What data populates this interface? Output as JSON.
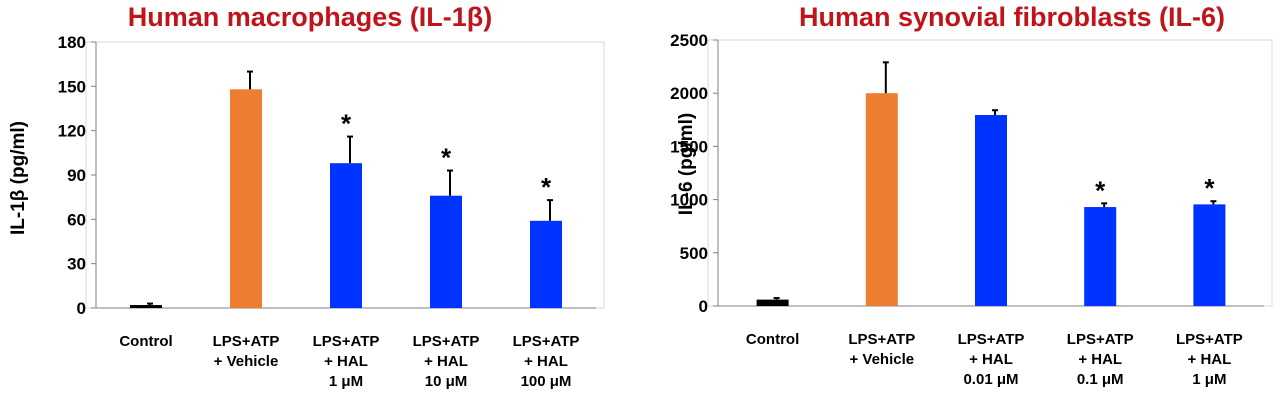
{
  "chart_data": [
    {
      "type": "bar",
      "title": "Human macrophages (IL-1β)",
      "ylabel": "IL-1β (pg/ml)",
      "xlabel": "",
      "ylim": [
        0,
        180
      ],
      "yticks": [
        0,
        30,
        60,
        90,
        120,
        150,
        180
      ],
      "categories": [
        [
          "Control"
        ],
        [
          "LPS+ATP",
          "+ Vehicle"
        ],
        [
          "LPS+ATP",
          "+ HAL",
          "1 μM"
        ],
        [
          "LPS+ATP",
          "+ HAL",
          "10 μM"
        ],
        [
          "LPS+ATP",
          "+ HAL",
          "100 μM"
        ]
      ],
      "values": [
        2,
        148,
        98,
        76,
        59
      ],
      "errors": [
        1,
        12,
        18,
        17,
        14
      ],
      "significance": [
        "",
        "",
        "*",
        "*",
        "*"
      ],
      "colors": [
        "#000000",
        "#ed7d31",
        "#0033ff",
        "#0033ff",
        "#0033ff"
      ],
      "grid": false,
      "legend": "none"
    },
    {
      "type": "bar",
      "title": "Human synovial fibroblasts (IL-6)",
      "ylabel": "IL-6 (pg/ml)",
      "xlabel": "",
      "ylim": [
        0,
        2500
      ],
      "yticks": [
        0,
        500,
        1000,
        1500,
        2000,
        2500
      ],
      "categories": [
        [
          "Control"
        ],
        [
          "LPS+ATP",
          "+ Vehicle"
        ],
        [
          "LPS+ATP",
          "+ HAL",
          "0.01 μM"
        ],
        [
          "LPS+ATP",
          "+ HAL",
          "0.1 μM"
        ],
        [
          "LPS+ATP",
          "+ HAL",
          "1 μM"
        ]
      ],
      "values": [
        60,
        2000,
        1795,
        930,
        955
      ],
      "errors": [
        15,
        290,
        45,
        35,
        30
      ],
      "significance": [
        "",
        "",
        "",
        "*",
        "*"
      ],
      "colors": [
        "#000000",
        "#ed7d31",
        "#0033ff",
        "#0033ff",
        "#0033ff"
      ],
      "grid": false,
      "legend": "none"
    }
  ]
}
